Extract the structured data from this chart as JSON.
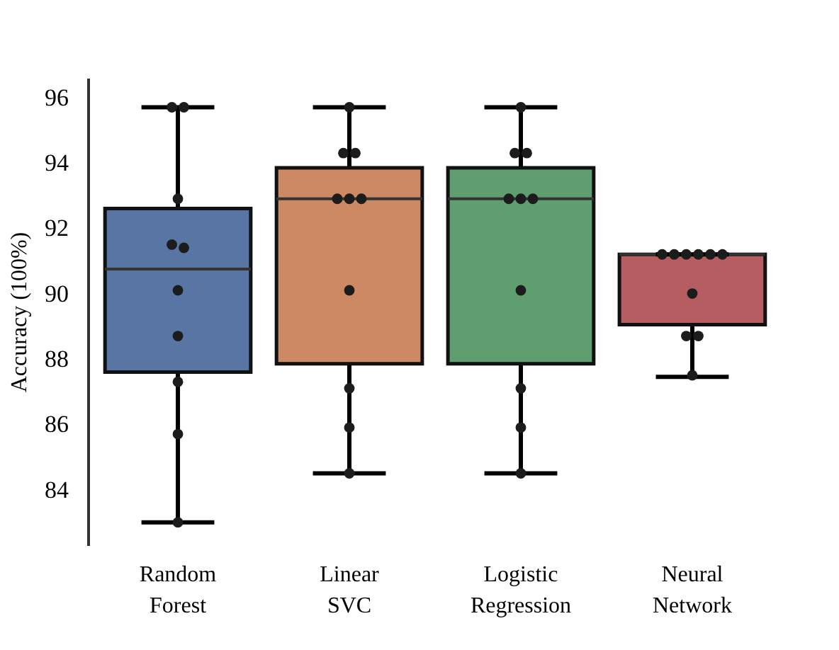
{
  "chart_data": {
    "type": "box",
    "ylabel": "Accuracy (100%)",
    "categories": [
      "Random Forest",
      "Linear SVC",
      "Logistic Regression",
      "Neural Network"
    ],
    "colors": [
      "#5875a4",
      "#cc8963",
      "#5f9e6e",
      "#b55d60"
    ],
    "boxes": [
      {
        "low": 83.0,
        "q1": 87.6,
        "median": 90.75,
        "q3": 92.6,
        "high": 95.7
      },
      {
        "low": 84.5,
        "q1": 87.85,
        "median": 92.9,
        "q3": 93.85,
        "high": 95.7
      },
      {
        "low": 84.5,
        "q1": 87.85,
        "median": 92.9,
        "q3": 93.85,
        "high": 95.7
      },
      {
        "low": 87.45,
        "q1": 89.05,
        "median": 91.2,
        "q3": 91.2,
        "high": 91.2
      }
    ],
    "series": [
      {
        "type": "scatter",
        "color": "#1c1c1c",
        "x": [
          "Random Forest",
          "Random Forest",
          "Random Forest",
          "Random Forest",
          "Random Forest",
          "Random Forest",
          "Random Forest",
          "Random Forest",
          "Random Forest",
          "Random Forest",
          "Linear SVC",
          "Linear SVC",
          "Linear SVC",
          "Linear SVC",
          "Linear SVC",
          "Linear SVC",
          "Linear SVC",
          "Linear SVC",
          "Linear SVC",
          "Linear SVC",
          "Logistic Regression",
          "Logistic Regression",
          "Logistic Regression",
          "Logistic Regression",
          "Logistic Regression",
          "Logistic Regression",
          "Logistic Regression",
          "Logistic Regression",
          "Logistic Regression",
          "Logistic Regression",
          "Neural Network",
          "Neural Network",
          "Neural Network",
          "Neural Network",
          "Neural Network",
          "Neural Network",
          "Neural Network",
          "Neural Network",
          "Neural Network",
          "Neural Network"
        ],
        "values": [
          95.7,
          95.7,
          92.9,
          91.5,
          91.4,
          90.1,
          88.7,
          87.3,
          85.7,
          83.0,
          95.7,
          94.3,
          94.3,
          92.9,
          92.9,
          92.9,
          90.1,
          87.1,
          85.9,
          84.5,
          95.7,
          94.3,
          94.3,
          92.9,
          92.9,
          92.9,
          90.1,
          87.1,
          85.9,
          84.5,
          91.2,
          91.2,
          91.2,
          91.2,
          91.2,
          91.2,
          90.0,
          88.7,
          88.7,
          87.5
        ]
      }
    ],
    "ylim": [
      82.3,
      96.6
    ],
    "yticks": [
      84,
      86,
      88,
      90,
      92,
      94,
      96
    ],
    "grid": false,
    "legend": false,
    "marker": "circle"
  }
}
